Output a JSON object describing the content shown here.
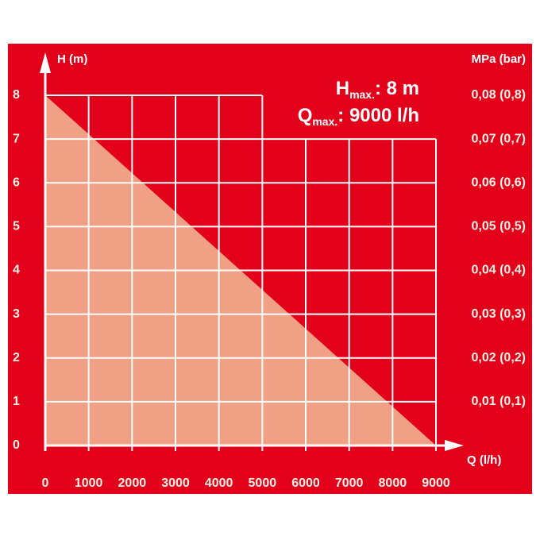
{
  "chart_data": {
    "type": "area",
    "x_label": "Q (l/h)",
    "y_label": "H (m)",
    "y2_label": "MPa (bar)",
    "x": [
      0,
      9000
    ],
    "series": [
      {
        "color": "#f0a084",
        "values": [
          8,
          0
        ]
      }
    ],
    "xlim": [
      0,
      9000
    ],
    "xticks": [
      0,
      1000,
      2000,
      3000,
      4000,
      5000,
      6000,
      7000,
      8000,
      9000
    ],
    "ylim": [
      0,
      8
    ],
    "yticks": [
      0,
      1,
      2,
      3,
      4,
      5,
      6,
      7,
      8
    ],
    "y2lim": [
      0,
      0.08
    ],
    "y2ticks": [
      {
        "value": 0.01,
        "label": "0,01 (0,1)"
      },
      {
        "value": 0.02,
        "label": "0,02 (0,2)"
      },
      {
        "value": 0.03,
        "label": "0,03 (0,3)"
      },
      {
        "value": 0.04,
        "label": "0,04 (0,4)"
      },
      {
        "value": 0.05,
        "label": "0,05 (0,5)"
      },
      {
        "value": 0.06,
        "label": "0,06 (0,6)"
      },
      {
        "value": 0.07,
        "label": "0,07 (0,7)"
      },
      {
        "value": 0.08,
        "label": "0,08 (0,8)"
      }
    ],
    "grid": true,
    "background": "#e2001a",
    "annotations": [
      {
        "text": "H",
        "subscript": "max.",
        "suffix": ": 8 m"
      },
      {
        "text": "Q",
        "subscript": "max.",
        "suffix": ": 9000 l/h"
      }
    ]
  }
}
